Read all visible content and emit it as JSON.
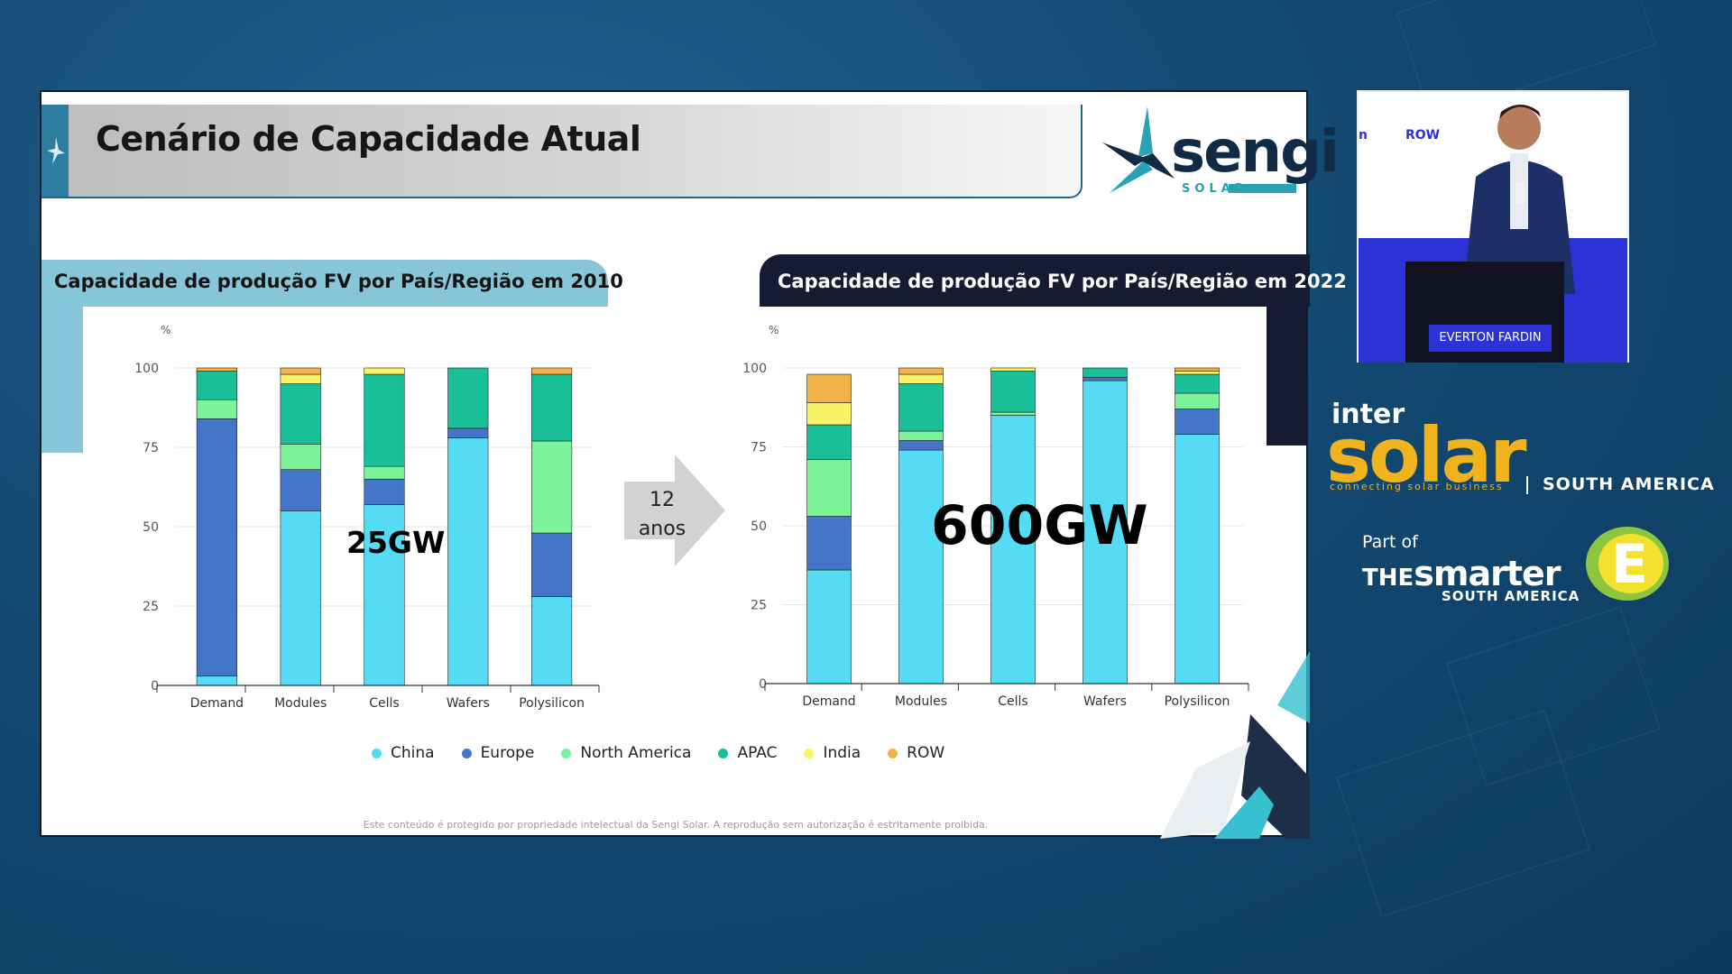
{
  "slide": {
    "title": "Cenário de Capacidade Atual",
    "logo": {
      "word": "sengi",
      "sub": "SOLAR"
    },
    "panel_left_title": "Capacidade de produção FV por País/Região em 2010",
    "panel_right_title": "Capacidade de produção FV por País/Região em 2022",
    "arrow_line1": "12",
    "arrow_line2": "anos",
    "overlay_left": "25GW",
    "overlay_right": "600GW",
    "footer": "Este conteúdo é protegido por propriedade intelectual da Sengi Solar. A reprodução sem autorização é estritamente proibida."
  },
  "legend": [
    {
      "label": "China",
      "color": "#55dcf4"
    },
    {
      "label": "Europe",
      "color": "#4475c8"
    },
    {
      "label": "North America",
      "color": "#7cf29a"
    },
    {
      "label": "APAC",
      "color": "#18bf98"
    },
    {
      "label": "India",
      "color": "#f8f46a"
    },
    {
      "label": "ROW",
      "color": "#f3b34c"
    }
  ],
  "video": {
    "screen_text_row": "ROW",
    "screen_text_n": "n",
    "speaker_name": "EVERTON FARDIN"
  },
  "branding": {
    "inter": "inter",
    "solar": "solar",
    "tagline": "connecting solar business",
    "region": "SOUTH AMERICA",
    "part_of": "Part of",
    "the": "THE",
    "smarter": "smarter",
    "region2": "SOUTH AMERICA",
    "e_letter": "E"
  },
  "chart_data": [
    {
      "type": "bar",
      "stacked": true,
      "title": "Capacidade de produção FV por País/Região em 2010",
      "ylabel": "%",
      "ylim": [
        0,
        100
      ],
      "yticks": [
        0,
        25,
        50,
        75,
        100
      ],
      "grid": true,
      "categories": [
        "Demand",
        "Modules",
        "Cells",
        "Wafers",
        "Polysilicon"
      ],
      "series": [
        {
          "name": "China",
          "values": [
            3,
            55,
            57,
            78,
            28
          ]
        },
        {
          "name": "Europe",
          "values": [
            81,
            13,
            8,
            3,
            20
          ]
        },
        {
          "name": "North America",
          "values": [
            6,
            8,
            4,
            0,
            29
          ]
        },
        {
          "name": "APAC",
          "values": [
            9,
            19,
            29,
            19,
            21
          ]
        },
        {
          "name": "India",
          "values": [
            0,
            3,
            2,
            0,
            0
          ]
        },
        {
          "name": "ROW",
          "values": [
            1,
            2,
            0,
            0,
            2
          ]
        }
      ]
    },
    {
      "type": "bar",
      "stacked": true,
      "title": "Capacidade de produção FV por País/Região em 2022",
      "ylabel": "%",
      "ylim": [
        0,
        100
      ],
      "yticks": [
        0,
        25,
        50,
        75,
        100
      ],
      "grid": true,
      "categories": [
        "Demand",
        "Modules",
        "Cells",
        "Wafers",
        "Polysilicon"
      ],
      "series": [
        {
          "name": "China",
          "values": [
            36,
            74,
            85,
            96,
            79
          ]
        },
        {
          "name": "Europe",
          "values": [
            17,
            3,
            0,
            1,
            8
          ]
        },
        {
          "name": "North America",
          "values": [
            18,
            3,
            1,
            0,
            5
          ]
        },
        {
          "name": "APAC",
          "values": [
            11,
            15,
            13,
            3,
            6
          ]
        },
        {
          "name": "India",
          "values": [
            7,
            3,
            1,
            0,
            1
          ]
        },
        {
          "name": "ROW",
          "values": [
            9,
            2,
            0,
            0,
            1
          ]
        }
      ]
    }
  ]
}
